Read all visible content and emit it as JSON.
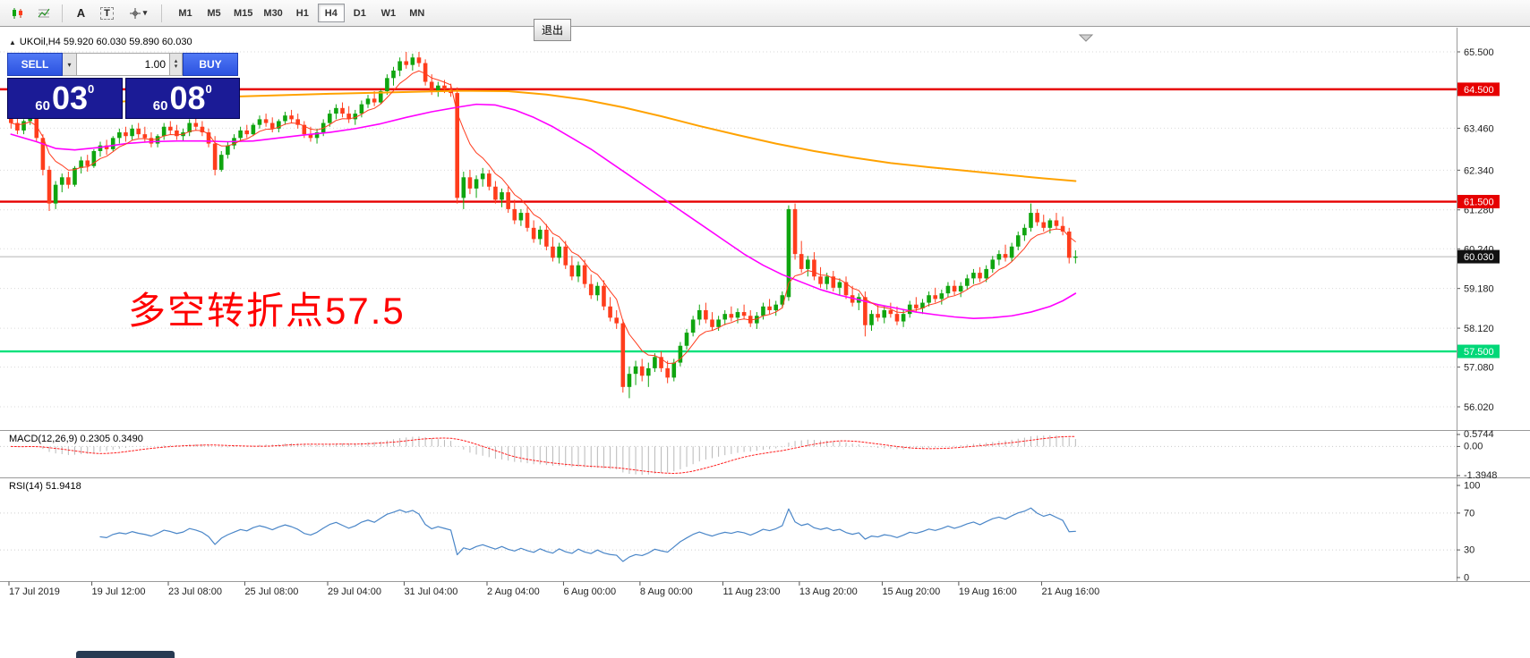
{
  "toolbar": {
    "exit_button_label": "退出",
    "timeframes": [
      {
        "label": "M1",
        "active": false
      },
      {
        "label": "M5",
        "active": false
      },
      {
        "label": "M15",
        "active": false
      },
      {
        "label": "M30",
        "active": false
      },
      {
        "label": "H1",
        "active": false
      },
      {
        "label": "H4",
        "active": true
      },
      {
        "label": "D1",
        "active": false
      },
      {
        "label": "W1",
        "active": false
      },
      {
        "label": "MN",
        "active": false
      }
    ],
    "text_tool_a": "A",
    "text_tool_t": "T"
  },
  "chart": {
    "symbol_info": "UKOil,H4 59.920 60.030 59.890 60.030",
    "trade_panel": {
      "sell_label": "SELL",
      "buy_label": "BUY",
      "volume": "1.00",
      "sell_price_small": "60",
      "sell_price_big": "03",
      "sell_price_sup": "0",
      "buy_price_small": "60",
      "buy_price_big": "08",
      "buy_price_sup": "0"
    },
    "annotation": {
      "text": "多空转折点57.5",
      "color": "#ff0000"
    },
    "price_axis_labels": [
      "65.500",
      "63.460",
      "62.340",
      "61.280",
      "60.240",
      "59.180",
      "58.120",
      "57.080",
      "56.020"
    ],
    "price_badges": [
      {
        "label": "64.500",
        "price": 64.5,
        "bg": "#e60000",
        "fg": "#ffffff"
      },
      {
        "label": "61.500",
        "price": 61.5,
        "bg": "#e60000",
        "fg": "#ffffff"
      },
      {
        "label": "60.030",
        "price": 60.03,
        "bg": "#111111",
        "fg": "#ffffff"
      },
      {
        "label": "57.500",
        "price": 57.5,
        "bg": "#00d878",
        "fg": "#ffffff"
      }
    ],
    "hlines": [
      {
        "price": 64.5,
        "color": "#e60000"
      },
      {
        "price": 61.5,
        "color": "#e60000"
      },
      {
        "price": 57.5,
        "color": "#00e17b"
      }
    ]
  },
  "macd_panel": {
    "label": "MACD(12,26,9) 0.2305 0.3490",
    "axis_labels": [
      "0.5744",
      "0.00",
      "-1.3948"
    ],
    "axis_values": [
      0.5744,
      0,
      -1.3948
    ]
  },
  "rsi_panel": {
    "label": "RSI(14) 51.9418",
    "axis_labels": [
      "100",
      "70",
      "30",
      "0"
    ],
    "axis_values": [
      100,
      70,
      30,
      0
    ],
    "levels": [
      70,
      30
    ]
  },
  "time_axis": [
    "17 Jul 2019",
    "19 Jul 12:00",
    "23 Jul 08:00",
    "25 Jul 08:00",
    "29 Jul 04:00",
    "31 Jul 04:00",
    "2 Aug 04:00",
    "6 Aug 00:00",
    "8 Aug 00:00",
    "11 Aug 23:00",
    "13 Aug 20:00",
    "15 Aug 20:00",
    "19 Aug 16:00",
    "21 Aug 16:00"
  ],
  "chart_data": {
    "type": "candlestick",
    "symbol": "UKOil",
    "timeframe": "H4",
    "current_price": 60.03,
    "ylim": [
      55.4,
      66.0
    ],
    "time_tick_indices": [
      0,
      13,
      25,
      37,
      50,
      62,
      75,
      87,
      99,
      112,
      124,
      137,
      149,
      162
    ],
    "colors": {
      "up": "#0fa50f",
      "down": "#ff3d1c",
      "ma_fast": "#ff3c1e",
      "ma_mid": "#ff00ff",
      "ma_slow": "#ffa200",
      "rsi": "#4a86c8",
      "macd_hist": "#b9b9b9",
      "macd_signal": "#ff2020"
    },
    "ohlc": [
      [
        63.8,
        63.98,
        63.45,
        63.6
      ],
      [
        63.6,
        63.75,
        63.3,
        63.4
      ],
      [
        63.4,
        63.7,
        63.3,
        63.65
      ],
      [
        63.65,
        63.9,
        63.55,
        63.8
      ],
      [
        63.8,
        63.85,
        63.1,
        63.2
      ],
      [
        63.2,
        63.3,
        62.2,
        62.35
      ],
      [
        62.35,
        62.45,
        61.25,
        61.45
      ],
      [
        61.45,
        62.05,
        61.3,
        61.95
      ],
      [
        61.95,
        62.25,
        61.75,
        62.15
      ],
      [
        62.15,
        62.3,
        61.85,
        61.95
      ],
      [
        61.95,
        62.45,
        61.9,
        62.4
      ],
      [
        62.4,
        62.7,
        62.25,
        62.6
      ],
      [
        62.6,
        62.75,
        62.3,
        62.45
      ],
      [
        62.45,
        62.9,
        62.4,
        62.85
      ],
      [
        62.85,
        63.1,
        62.7,
        63.0
      ],
      [
        63.0,
        63.15,
        62.75,
        62.9
      ],
      [
        62.9,
        63.25,
        62.85,
        63.2
      ],
      [
        63.2,
        63.45,
        63.05,
        63.35
      ],
      [
        63.35,
        63.5,
        63.1,
        63.25
      ],
      [
        63.25,
        63.55,
        63.15,
        63.45
      ],
      [
        63.45,
        63.6,
        63.2,
        63.3
      ],
      [
        63.3,
        63.5,
        63.1,
        63.2
      ],
      [
        63.2,
        63.35,
        62.95,
        63.05
      ],
      [
        63.05,
        63.3,
        62.95,
        63.25
      ],
      [
        63.25,
        63.6,
        63.15,
        63.5
      ],
      [
        63.5,
        63.65,
        63.3,
        63.4
      ],
      [
        63.4,
        63.55,
        63.15,
        63.25
      ],
      [
        63.25,
        63.45,
        63.1,
        63.35
      ],
      [
        63.35,
        63.7,
        63.25,
        63.6
      ],
      [
        63.6,
        63.75,
        63.4,
        63.5
      ],
      [
        63.5,
        63.65,
        63.25,
        63.35
      ],
      [
        63.35,
        63.45,
        62.95,
        63.05
      ],
      [
        63.05,
        63.25,
        62.2,
        62.35
      ],
      [
        62.35,
        62.85,
        62.3,
        62.75
      ],
      [
        62.75,
        63.1,
        62.65,
        63.0
      ],
      [
        63.0,
        63.3,
        62.9,
        63.2
      ],
      [
        63.2,
        63.5,
        63.1,
        63.4
      ],
      [
        63.4,
        63.55,
        63.2,
        63.3
      ],
      [
        63.3,
        63.6,
        63.25,
        63.55
      ],
      [
        63.55,
        63.8,
        63.45,
        63.7
      ],
      [
        63.7,
        63.85,
        63.5,
        63.6
      ],
      [
        63.6,
        63.75,
        63.35,
        63.45
      ],
      [
        63.45,
        63.7,
        63.35,
        63.65
      ],
      [
        63.65,
        63.9,
        63.55,
        63.8
      ],
      [
        63.8,
        63.95,
        63.6,
        63.7
      ],
      [
        63.7,
        63.85,
        63.45,
        63.55
      ],
      [
        63.55,
        63.65,
        63.2,
        63.3
      ],
      [
        63.3,
        63.5,
        63.1,
        63.2
      ],
      [
        63.2,
        63.45,
        63.05,
        63.35
      ],
      [
        63.35,
        63.7,
        63.25,
        63.6
      ],
      [
        63.6,
        63.95,
        63.5,
        63.85
      ],
      [
        63.85,
        64.1,
        63.7,
        64.0
      ],
      [
        64.0,
        64.15,
        63.75,
        63.85
      ],
      [
        63.85,
        64.05,
        63.6,
        63.7
      ],
      [
        63.7,
        63.95,
        63.55,
        63.85
      ],
      [
        63.85,
        64.2,
        63.75,
        64.1
      ],
      [
        64.1,
        64.35,
        64.0,
        64.25
      ],
      [
        64.25,
        64.45,
        64.05,
        64.15
      ],
      [
        64.15,
        64.5,
        64.1,
        64.45
      ],
      [
        64.45,
        64.9,
        64.35,
        64.8
      ],
      [
        64.8,
        65.1,
        64.6,
        65.0
      ],
      [
        65.0,
        65.35,
        64.85,
        65.25
      ],
      [
        65.25,
        65.5,
        65.05,
        65.15
      ],
      [
        65.15,
        65.45,
        65.0,
        65.35
      ],
      [
        65.35,
        65.5,
        65.1,
        65.2
      ],
      [
        65.2,
        65.3,
        64.6,
        64.7
      ],
      [
        64.7,
        64.9,
        64.35,
        64.45
      ],
      [
        64.45,
        64.7,
        64.3,
        64.6
      ],
      [
        64.6,
        64.75,
        64.4,
        64.5
      ],
      [
        64.5,
        64.65,
        64.3,
        64.4
      ],
      [
        64.4,
        64.55,
        61.45,
        61.6
      ],
      [
        61.6,
        62.3,
        61.3,
        62.15
      ],
      [
        62.15,
        62.35,
        61.7,
        61.85
      ],
      [
        61.85,
        62.2,
        61.6,
        62.1
      ],
      [
        62.1,
        62.4,
        61.9,
        62.25
      ],
      [
        62.25,
        62.35,
        61.8,
        61.9
      ],
      [
        61.9,
        62.05,
        61.45,
        61.55
      ],
      [
        61.55,
        61.85,
        61.35,
        61.75
      ],
      [
        61.75,
        61.9,
        61.2,
        61.3
      ],
      [
        61.3,
        61.55,
        60.9,
        61.0
      ],
      [
        61.0,
        61.3,
        60.85,
        61.2
      ],
      [
        61.2,
        61.35,
        60.7,
        60.8
      ],
      [
        60.8,
        61.0,
        60.4,
        60.5
      ],
      [
        60.5,
        60.85,
        60.35,
        60.75
      ],
      [
        60.75,
        60.9,
        60.2,
        60.3
      ],
      [
        60.3,
        60.55,
        59.9,
        60.0
      ],
      [
        60.0,
        60.4,
        59.85,
        60.3
      ],
      [
        60.3,
        60.45,
        59.7,
        59.8
      ],
      [
        59.8,
        60.05,
        59.4,
        59.5
      ],
      [
        59.5,
        59.9,
        59.35,
        59.8
      ],
      [
        59.8,
        59.95,
        59.2,
        59.3
      ],
      [
        59.3,
        59.55,
        58.9,
        59.0
      ],
      [
        59.0,
        59.35,
        58.85,
        59.25
      ],
      [
        59.25,
        59.4,
        58.6,
        58.7
      ],
      [
        58.7,
        58.95,
        58.3,
        58.4
      ],
      [
        58.4,
        58.6,
        58.1,
        58.25
      ],
      [
        58.25,
        58.35,
        56.4,
        56.55
      ],
      [
        56.55,
        57.1,
        56.25,
        56.9
      ],
      [
        56.9,
        57.25,
        56.6,
        57.1
      ],
      [
        57.1,
        57.3,
        56.7,
        56.85
      ],
      [
        56.85,
        57.2,
        56.55,
        57.05
      ],
      [
        57.05,
        57.45,
        56.95,
        57.35
      ],
      [
        57.35,
        57.5,
        56.95,
        57.05
      ],
      [
        57.05,
        57.25,
        56.65,
        56.8
      ],
      [
        56.8,
        57.3,
        56.7,
        57.2
      ],
      [
        57.2,
        57.75,
        57.1,
        57.65
      ],
      [
        57.65,
        58.1,
        57.55,
        58.0
      ],
      [
        58.0,
        58.45,
        57.9,
        58.35
      ],
      [
        58.35,
        58.75,
        58.2,
        58.6
      ],
      [
        58.6,
        58.8,
        58.25,
        58.35
      ],
      [
        58.35,
        58.55,
        58.05,
        58.15
      ],
      [
        58.15,
        58.45,
        58.05,
        58.35
      ],
      [
        58.35,
        58.6,
        58.2,
        58.5
      ],
      [
        58.5,
        58.7,
        58.3,
        58.4
      ],
      [
        58.4,
        58.65,
        58.25,
        58.55
      ],
      [
        58.55,
        58.75,
        58.35,
        58.45
      ],
      [
        58.45,
        58.6,
        58.15,
        58.25
      ],
      [
        58.25,
        58.55,
        58.1,
        58.45
      ],
      [
        58.45,
        58.8,
        58.35,
        58.7
      ],
      [
        58.7,
        58.9,
        58.5,
        58.6
      ],
      [
        58.6,
        58.85,
        58.45,
        58.75
      ],
      [
        58.75,
        59.1,
        58.65,
        59.0
      ],
      [
        58.95,
        61.4,
        58.85,
        61.3
      ],
      [
        61.3,
        61.45,
        59.95,
        60.1
      ],
      [
        60.1,
        60.45,
        59.6,
        59.7
      ],
      [
        59.7,
        60.05,
        59.5,
        59.95
      ],
      [
        59.95,
        60.15,
        59.4,
        59.5
      ],
      [
        59.5,
        59.75,
        59.2,
        59.3
      ],
      [
        59.3,
        59.6,
        59.15,
        59.5
      ],
      [
        59.5,
        59.65,
        59.1,
        59.2
      ],
      [
        59.2,
        59.45,
        59.0,
        59.35
      ],
      [
        59.35,
        59.5,
        58.9,
        59.0
      ],
      [
        59.0,
        59.25,
        58.7,
        58.8
      ],
      [
        58.8,
        59.05,
        58.6,
        58.95
      ],
      [
        58.95,
        59.1,
        57.9,
        58.2
      ],
      [
        58.2,
        58.6,
        58.05,
        58.5
      ],
      [
        58.5,
        58.75,
        58.3,
        58.4
      ],
      [
        58.4,
        58.7,
        58.25,
        58.6
      ],
      [
        58.6,
        58.8,
        58.4,
        58.5
      ],
      [
        58.5,
        58.7,
        58.2,
        58.3
      ],
      [
        58.3,
        58.6,
        58.15,
        58.5
      ],
      [
        58.5,
        58.85,
        58.4,
        58.75
      ],
      [
        58.75,
        58.95,
        58.55,
        58.65
      ],
      [
        58.65,
        58.9,
        58.5,
        58.8
      ],
      [
        58.8,
        59.1,
        58.7,
        59.0
      ],
      [
        59.0,
        59.2,
        58.8,
        58.9
      ],
      [
        58.9,
        59.15,
        58.75,
        59.05
      ],
      [
        59.05,
        59.35,
        58.95,
        59.25
      ],
      [
        59.25,
        59.4,
        59.0,
        59.1
      ],
      [
        59.1,
        59.35,
        58.95,
        59.25
      ],
      [
        59.25,
        59.55,
        59.15,
        59.45
      ],
      [
        59.45,
        59.7,
        59.3,
        59.6
      ],
      [
        59.6,
        59.75,
        59.35,
        59.45
      ],
      [
        59.45,
        59.8,
        59.35,
        59.7
      ],
      [
        59.7,
        60.05,
        59.6,
        59.95
      ],
      [
        59.95,
        60.2,
        59.8,
        60.1
      ],
      [
        60.1,
        60.35,
        59.9,
        60.0
      ],
      [
        60.0,
        60.4,
        59.9,
        60.3
      ],
      [
        60.3,
        60.7,
        60.2,
        60.6
      ],
      [
        60.6,
        60.9,
        60.45,
        60.8
      ],
      [
        60.8,
        61.45,
        60.7,
        61.2
      ],
      [
        61.2,
        61.3,
        60.85,
        60.95
      ],
      [
        60.95,
        61.15,
        60.7,
        60.8
      ],
      [
        60.8,
        61.05,
        60.65,
        61.0
      ],
      [
        61.0,
        61.2,
        60.75,
        60.85
      ],
      [
        60.85,
        61.1,
        60.6,
        60.7
      ],
      [
        60.7,
        60.8,
        59.85,
        60.0
      ],
      [
        60.0,
        60.2,
        59.85,
        60.03
      ]
    ],
    "ma_slow_orange": [
      [
        0,
        64.0
      ],
      [
        10,
        64.1
      ],
      [
        20,
        64.2
      ],
      [
        30,
        64.28
      ],
      [
        40,
        64.33
      ],
      [
        50,
        64.38
      ],
      [
        60,
        64.42
      ],
      [
        70,
        64.46
      ],
      [
        78,
        64.45
      ],
      [
        84,
        64.36
      ],
      [
        90,
        64.22
      ],
      [
        96,
        64.02
      ],
      [
        102,
        63.78
      ],
      [
        108,
        63.52
      ],
      [
        114,
        63.28
      ],
      [
        120,
        63.05
      ],
      [
        126,
        62.85
      ],
      [
        132,
        62.68
      ],
      [
        138,
        62.53
      ],
      [
        144,
        62.42
      ],
      [
        150,
        62.32
      ],
      [
        156,
        62.22
      ],
      [
        162,
        62.12
      ],
      [
        167,
        62.05
      ]
    ],
    "ma_mid_magenta": [
      [
        0,
        63.3
      ],
      [
        4,
        63.1
      ],
      [
        7,
        62.92
      ],
      [
        10,
        62.88
      ],
      [
        14,
        62.95
      ],
      [
        18,
        63.05
      ],
      [
        22,
        63.1
      ],
      [
        26,
        63.12
      ],
      [
        30,
        63.12
      ],
      [
        34,
        63.1
      ],
      [
        38,
        63.12
      ],
      [
        42,
        63.2
      ],
      [
        46,
        63.28
      ],
      [
        50,
        63.35
      ],
      [
        54,
        63.45
      ],
      [
        58,
        63.58
      ],
      [
        62,
        63.75
      ],
      [
        66,
        63.9
      ],
      [
        70,
        64.02
      ],
      [
        73,
        64.1
      ],
      [
        76,
        64.08
      ],
      [
        79,
        63.95
      ],
      [
        82,
        63.75
      ],
      [
        85,
        63.5
      ],
      [
        88,
        63.2
      ],
      [
        91,
        62.9
      ],
      [
        94,
        62.55
      ],
      [
        97,
        62.2
      ],
      [
        100,
        61.85
      ],
      [
        103,
        61.5
      ],
      [
        106,
        61.15
      ],
      [
        109,
        60.8
      ],
      [
        112,
        60.45
      ],
      [
        115,
        60.1
      ],
      [
        118,
        59.8
      ],
      [
        121,
        59.55
      ],
      [
        124,
        59.35
      ],
      [
        127,
        59.15
      ],
      [
        130,
        59.0
      ],
      [
        133,
        58.88
      ],
      [
        136,
        58.75
      ],
      [
        139,
        58.65
      ],
      [
        142,
        58.55
      ],
      [
        145,
        58.48
      ],
      [
        148,
        58.42
      ],
      [
        151,
        58.38
      ],
      [
        154,
        58.4
      ],
      [
        157,
        58.45
      ],
      [
        160,
        58.55
      ],
      [
        163,
        58.7
      ],
      [
        165,
        58.85
      ],
      [
        167,
        59.05
      ]
    ]
  }
}
